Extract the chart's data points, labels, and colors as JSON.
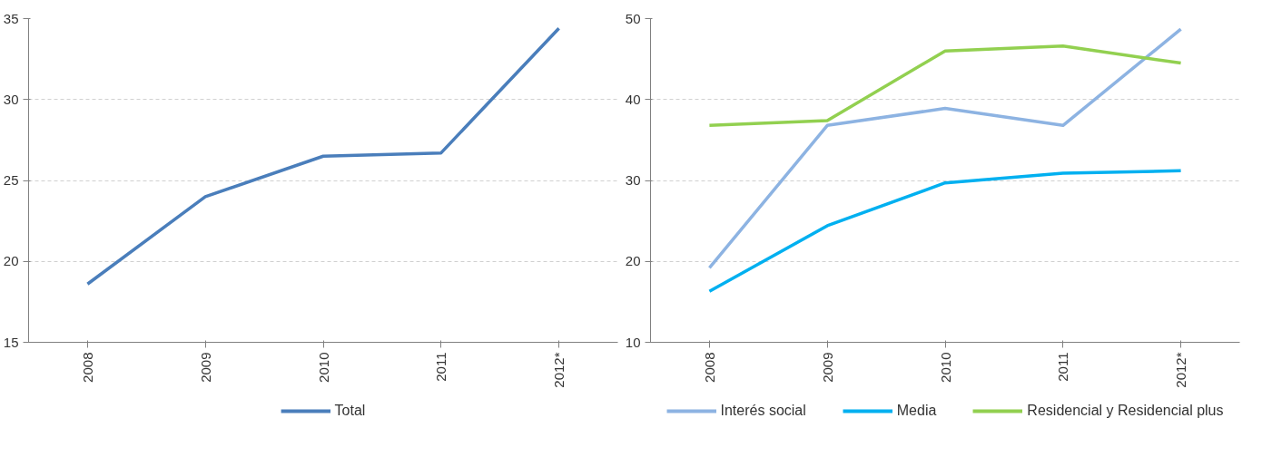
{
  "chart_data": [
    {
      "type": "line",
      "categories": [
        "2008",
        "2009",
        "2010",
        "2011",
        "2012*"
      ],
      "series": [
        {
          "name": "Total",
          "color": "#4a7ebb",
          "values": [
            18.6,
            24.0,
            26.5,
            26.7,
            34.4
          ]
        }
      ],
      "ylim": [
        15,
        35
      ],
      "yticks": [
        15,
        20,
        25,
        30,
        35
      ],
      "grid": "y",
      "legend": "bottom",
      "line_style": "solid"
    },
    {
      "type": "line",
      "categories": [
        "2008",
        "2009",
        "2010",
        "2011",
        "2012*"
      ],
      "series": [
        {
          "name": "Interés social",
          "color": "#8db3e2",
          "values": [
            19.2,
            36.8,
            38.9,
            36.8,
            48.7
          ]
        },
        {
          "name": "Media",
          "color": "#00b0f0",
          "values": [
            16.3,
            24.4,
            29.7,
            30.9,
            31.2
          ]
        },
        {
          "name": "Residencial y Residencial plus",
          "color": "#92d050",
          "values": [
            36.8,
            37.4,
            46.0,
            46.6,
            44.5
          ]
        }
      ],
      "ylim": [
        10,
        50
      ],
      "yticks": [
        10,
        20,
        30,
        40,
        50
      ],
      "grid": "y",
      "legend": "bottom",
      "line_style": "solid"
    }
  ]
}
